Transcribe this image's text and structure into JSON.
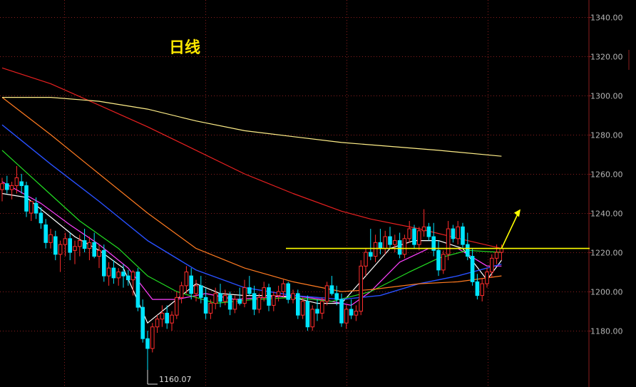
{
  "chart_data": {
    "type": "candlestick",
    "title": "日线",
    "ylim": [
      1155,
      1345
    ],
    "y_ticks": [
      "1340.00",
      "1320.00",
      "1300.00",
      "1280.00",
      "1260.00",
      "1240.00",
      "1220.00",
      "1200.00",
      "1180.00"
    ],
    "y_tick_values": [
      1340,
      1320,
      1300,
      1280,
      1260,
      1240,
      1220,
      1200,
      1180
    ],
    "low_annotation": "1160.07",
    "low_value": 1160.07,
    "resistance_level": 1222,
    "colors": {
      "up": "#ff2d2d",
      "down": "#00e5ff",
      "resistance": "#ffff00",
      "arrow": "#ffff00",
      "grid": "#8a1e1e"
    },
    "candles": [
      [
        1252,
        1258,
        1246,
        1255
      ],
      [
        1255,
        1259,
        1250,
        1252
      ],
      [
        1252,
        1256,
        1247,
        1254
      ],
      [
        1254,
        1264,
        1250,
        1258
      ],
      [
        1256,
        1260,
        1250,
        1254
      ],
      [
        1254,
        1256,
        1238,
        1241
      ],
      [
        1240,
        1246,
        1236,
        1246
      ],
      [
        1245,
        1248,
        1237,
        1240
      ],
      [
        1240,
        1243,
        1232,
        1235
      ],
      [
        1234,
        1237,
        1222,
        1225
      ],
      [
        1225,
        1232,
        1222,
        1229
      ],
      [
        1228,
        1231,
        1216,
        1219
      ],
      [
        1219,
        1226,
        1210,
        1224
      ],
      [
        1224,
        1230,
        1218,
        1227
      ],
      [
        1227,
        1230,
        1216,
        1220
      ],
      [
        1221,
        1226,
        1214,
        1223
      ],
      [
        1223,
        1229,
        1218,
        1226
      ],
      [
        1226,
        1232,
        1220,
        1222
      ],
      [
        1222,
        1228,
        1216,
        1225
      ],
      [
        1225,
        1230,
        1217,
        1218
      ],
      [
        1218,
        1224,
        1212,
        1221
      ],
      [
        1221,
        1224,
        1205,
        1208
      ],
      [
        1208,
        1215,
        1203,
        1212
      ],
      [
        1212,
        1216,
        1204,
        1207
      ],
      [
        1207,
        1212,
        1203,
        1210
      ],
      [
        1210,
        1214,
        1202,
        1208
      ],
      [
        1208,
        1211,
        1203,
        1206
      ],
      [
        1206,
        1211,
        1198,
        1210
      ],
      [
        1210,
        1212,
        1190,
        1192
      ],
      [
        1192,
        1196,
        1174,
        1176
      ],
      [
        1176,
        1180,
        1160.07,
        1171
      ],
      [
        1171,
        1184,
        1169,
        1182
      ],
      [
        1182,
        1188,
        1179,
        1186
      ],
      [
        1186,
        1193,
        1182,
        1189
      ],
      [
        1189,
        1193,
        1181,
        1184
      ],
      [
        1184,
        1190,
        1180,
        1188
      ],
      [
        1188,
        1200,
        1186,
        1197
      ],
      [
        1197,
        1205,
        1194,
        1203
      ],
      [
        1203,
        1213,
        1199,
        1210
      ],
      [
        1208,
        1212,
        1196,
        1199
      ],
      [
        1199,
        1206,
        1195,
        1203
      ],
      [
        1203,
        1208,
        1194,
        1197
      ],
      [
        1197,
        1202,
        1186,
        1189
      ],
      [
        1189,
        1196,
        1186,
        1194
      ],
      [
        1194,
        1202,
        1191,
        1199
      ],
      [
        1199,
        1204,
        1192,
        1195
      ],
      [
        1195,
        1201,
        1193,
        1198
      ],
      [
        1198,
        1200,
        1188,
        1191
      ],
      [
        1191,
        1198,
        1189,
        1196
      ],
      [
        1196,
        1202,
        1193,
        1194
      ],
      [
        1194,
        1206,
        1192,
        1202
      ],
      [
        1202,
        1208,
        1198,
        1199
      ],
      [
        1199,
        1203,
        1188,
        1191
      ],
      [
        1191,
        1199,
        1189,
        1197
      ],
      [
        1197,
        1205,
        1195,
        1202
      ],
      [
        1202,
        1204,
        1190,
        1193
      ],
      [
        1193,
        1200,
        1190,
        1198
      ],
      [
        1198,
        1203,
        1195,
        1200
      ],
      [
        1200,
        1206,
        1197,
        1204
      ],
      [
        1204,
        1205,
        1194,
        1196
      ],
      [
        1196,
        1201,
        1194,
        1199
      ],
      [
        1199,
        1201,
        1186,
        1188
      ],
      [
        1188,
        1197,
        1186,
        1195
      ],
      [
        1195,
        1198,
        1180,
        1182
      ],
      [
        1182,
        1193,
        1180,
        1191
      ],
      [
        1191,
        1196,
        1185,
        1189
      ],
      [
        1189,
        1197,
        1186,
        1195
      ],
      [
        1195,
        1205,
        1193,
        1203
      ],
      [
        1203,
        1208,
        1198,
        1199
      ],
      [
        1199,
        1203,
        1193,
        1196
      ],
      [
        1196,
        1199,
        1182,
        1184
      ],
      [
        1184,
        1193,
        1181,
        1191
      ],
      [
        1191,
        1196,
        1186,
        1188
      ],
      [
        1188,
        1193,
        1185,
        1190
      ],
      [
        1190,
        1216,
        1188,
        1213
      ],
      [
        1213,
        1222,
        1208,
        1220
      ],
      [
        1220,
        1232,
        1216,
        1218
      ],
      [
        1218,
        1229,
        1215,
        1225
      ],
      [
        1225,
        1232,
        1219,
        1222
      ],
      [
        1222,
        1231,
        1219,
        1228
      ],
      [
        1228,
        1233,
        1222,
        1224
      ],
      [
        1224,
        1229,
        1220,
        1226
      ],
      [
        1226,
        1230,
        1217,
        1219
      ],
      [
        1219,
        1229,
        1217,
        1227
      ],
      [
        1227,
        1236,
        1225,
        1232
      ],
      [
        1232,
        1234,
        1222,
        1224
      ],
      [
        1224,
        1233,
        1221,
        1231
      ],
      [
        1231,
        1242,
        1228,
        1233
      ],
      [
        1233,
        1235,
        1226,
        1228
      ],
      [
        1228,
        1235,
        1218,
        1221
      ],
      [
        1221,
        1226,
        1208,
        1211
      ],
      [
        1211,
        1221,
        1209,
        1219
      ],
      [
        1219,
        1236,
        1216,
        1232
      ],
      [
        1232,
        1234,
        1225,
        1227
      ],
      [
        1227,
        1236,
        1224,
        1233
      ],
      [
        1233,
        1235,
        1222,
        1224
      ],
      [
        1224,
        1230,
        1216,
        1218
      ],
      [
        1218,
        1222,
        1203,
        1205
      ],
      [
        1205,
        1209,
        1196,
        1198
      ],
      [
        1198,
        1207,
        1195,
        1204
      ],
      [
        1204,
        1212,
        1202,
        1210
      ],
      [
        1210,
        1219,
        1207,
        1217
      ],
      [
        1217,
        1224,
        1214,
        1220
      ],
      [
        1220,
        1224,
        1216,
        1222
      ]
    ],
    "moving_averages": [
      {
        "color": "#ffffff",
        "width": 1.2,
        "values": [
          [
            0,
            1250
          ],
          [
            5,
            1248
          ],
          [
            10,
            1238
          ],
          [
            15,
            1228
          ],
          [
            20,
            1221
          ],
          [
            25,
            1212
          ],
          [
            30,
            1184
          ],
          [
            35,
            1194
          ],
          [
            40,
            1204
          ],
          [
            45,
            1199
          ],
          [
            50,
            1198
          ],
          [
            55,
            1198
          ],
          [
            60,
            1197
          ],
          [
            65,
            1194
          ],
          [
            70,
            1194
          ],
          [
            75,
            1208
          ],
          [
            80,
            1222
          ],
          [
            85,
            1226
          ],
          [
            90,
            1226
          ],
          [
            95,
            1222
          ],
          [
            100,
            1206
          ],
          [
            103,
            1216
          ]
        ]
      },
      {
        "color": "#ff40ff",
        "width": 1.2,
        "values": [
          [
            0,
            1256
          ],
          [
            8,
            1245
          ],
          [
            14,
            1234
          ],
          [
            20,
            1224
          ],
          [
            26,
            1212
          ],
          [
            31,
            1196
          ],
          [
            36,
            1196
          ],
          [
            42,
            1199
          ],
          [
            48,
            1196
          ],
          [
            54,
            1197
          ],
          [
            60,
            1198
          ],
          [
            66,
            1196
          ],
          [
            72,
            1193
          ],
          [
            76,
            1200
          ],
          [
            82,
            1215
          ],
          [
            88,
            1222
          ],
          [
            94,
            1222
          ],
          [
            100,
            1213
          ],
          [
            103,
            1213
          ]
        ]
      },
      {
        "color": "#22dd22",
        "width": 1.2,
        "values": [
          [
            0,
            1272
          ],
          [
            8,
            1254
          ],
          [
            16,
            1236
          ],
          [
            24,
            1222
          ],
          [
            30,
            1208
          ],
          [
            36,
            1200
          ],
          [
            44,
            1194
          ],
          [
            52,
            1196
          ],
          [
            60,
            1197
          ],
          [
            68,
            1195
          ],
          [
            76,
            1200
          ],
          [
            84,
            1210
          ],
          [
            90,
            1217
          ],
          [
            96,
            1221
          ],
          [
            103,
            1220
          ]
        ]
      },
      {
        "color": "#2850ff",
        "width": 1.4,
        "values": [
          [
            0,
            1285
          ],
          [
            10,
            1265
          ],
          [
            20,
            1246
          ],
          [
            30,
            1226
          ],
          [
            40,
            1211
          ],
          [
            50,
            1202
          ],
          [
            60,
            1198
          ],
          [
            70,
            1196
          ],
          [
            78,
            1198
          ],
          [
            86,
            1204
          ],
          [
            94,
            1208
          ],
          [
            103,
            1214
          ]
        ]
      },
      {
        "color": "#ff7a20",
        "width": 1.2,
        "values": [
          [
            0,
            1299
          ],
          [
            10,
            1280
          ],
          [
            20,
            1260
          ],
          [
            30,
            1240
          ],
          [
            40,
            1222
          ],
          [
            50,
            1212
          ],
          [
            60,
            1205
          ],
          [
            70,
            1200
          ],
          [
            76,
            1201
          ],
          [
            86,
            1204
          ],
          [
            94,
            1205
          ],
          [
            103,
            1208
          ]
        ]
      },
      {
        "color": "#e82020",
        "width": 1.2,
        "values": [
          [
            0,
            1314
          ],
          [
            10,
            1306
          ],
          [
            20,
            1295
          ],
          [
            30,
            1284
          ],
          [
            40,
            1272
          ],
          [
            50,
            1260
          ],
          [
            60,
            1250
          ],
          [
            70,
            1241
          ],
          [
            76,
            1237
          ],
          [
            86,
            1232
          ],
          [
            96,
            1226
          ],
          [
            103,
            1222
          ]
        ]
      },
      {
        "color": "#ffee88",
        "width": 1.2,
        "values": [
          [
            0,
            1299
          ],
          [
            10,
            1299
          ],
          [
            20,
            1297
          ],
          [
            30,
            1293
          ],
          [
            40,
            1287
          ],
          [
            50,
            1282
          ],
          [
            60,
            1279
          ],
          [
            70,
            1276
          ],
          [
            80,
            1274
          ],
          [
            90,
            1272
          ],
          [
            103,
            1269
          ]
        ]
      }
    ]
  }
}
